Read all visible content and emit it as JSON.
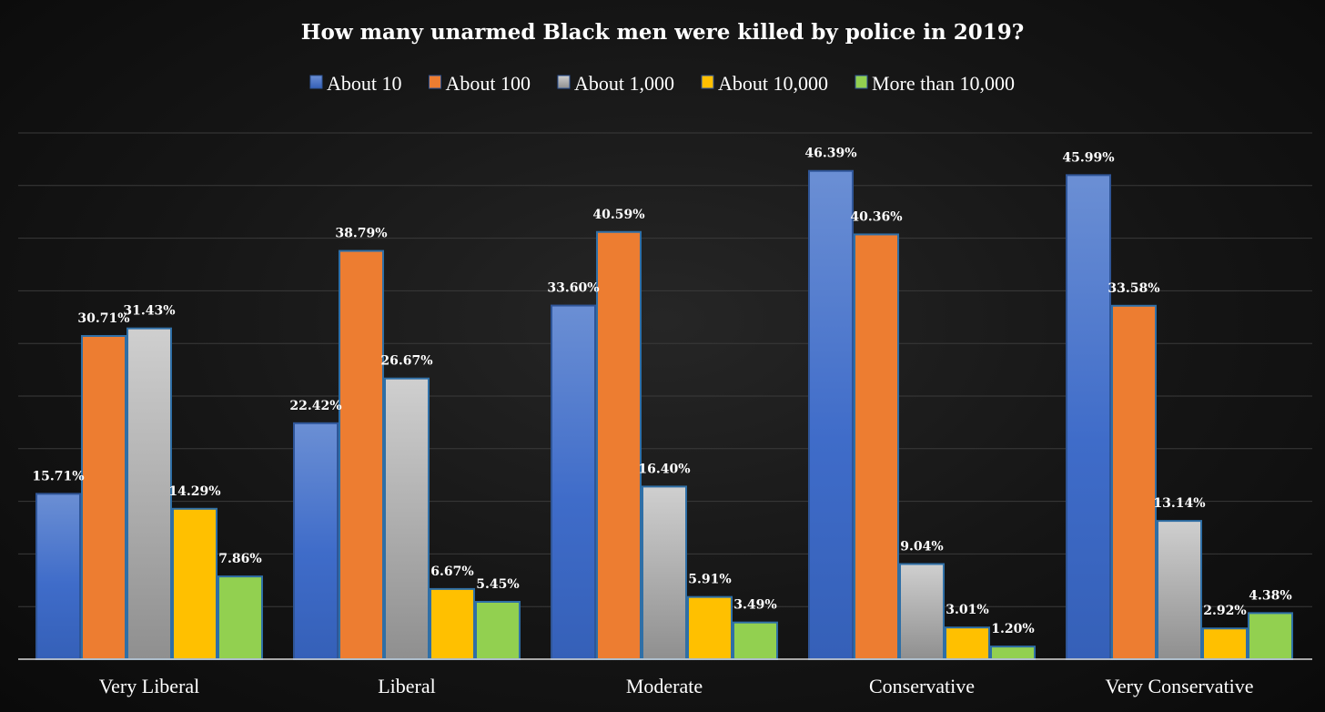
{
  "chart_data": {
    "type": "bar",
    "title": "How many unarmed Black men were killed by police in 2019?",
    "xlabel": "",
    "ylabel": "",
    "ylim": [
      0,
      50
    ],
    "grid": true,
    "legend_position": "top",
    "categories": [
      "Very Liberal",
      "Liberal",
      "Moderate",
      "Conservative",
      "Very Conservative"
    ],
    "series": [
      {
        "name": "About 10",
        "values": [
          15.71,
          22.42,
          33.6,
          46.39,
          45.99
        ],
        "labels": [
          "15.71%",
          "22.42%",
          "33.60%",
          "46.39%",
          "45.99%"
        ],
        "color": "#4472c4"
      },
      {
        "name": "About 100",
        "values": [
          30.71,
          38.79,
          40.59,
          40.36,
          33.58
        ],
        "labels": [
          "30.71%",
          "38.79%",
          "40.59%",
          "40.36%",
          "33.58%"
        ],
        "color": "#ed7d31"
      },
      {
        "name": "About 1,000",
        "values": [
          31.43,
          26.67,
          16.4,
          9.04,
          13.14
        ],
        "labels": [
          "31.43%",
          "26.67%",
          "16.40%",
          "9.04%",
          "13.14%"
        ],
        "color": "#a5a5a5"
      },
      {
        "name": "About 10,000",
        "values": [
          14.29,
          6.67,
          5.91,
          3.01,
          2.92
        ],
        "labels": [
          "14.29%",
          "6.67%",
          "5.91%",
          "3.01%",
          "2.92%"
        ],
        "color": "#ffc000"
      },
      {
        "name": "More than 10,000",
        "values": [
          7.86,
          5.45,
          3.49,
          1.2,
          4.38
        ],
        "labels": [
          "7.86%",
          "5.45%",
          "3.49%",
          "1.20%",
          "4.38%"
        ],
        "color": "#92d050"
      }
    ]
  }
}
